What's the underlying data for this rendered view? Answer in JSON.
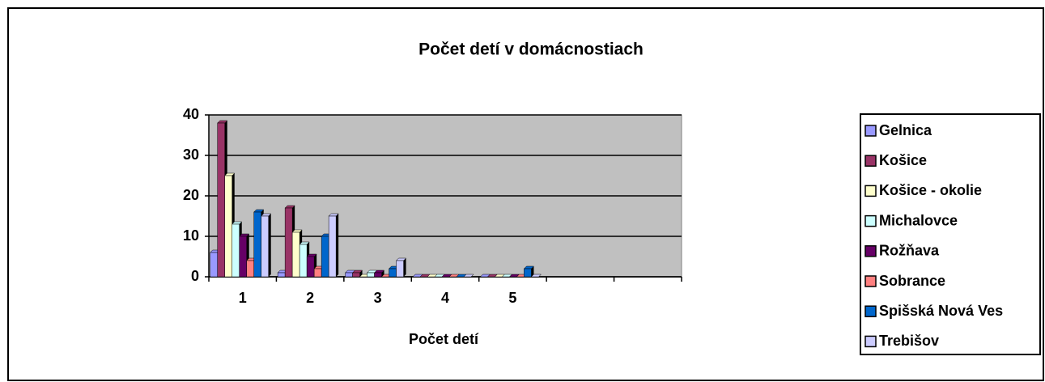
{
  "chart_data": {
    "type": "bar",
    "title": "Počet detí v domácnostiach",
    "x_label": "Počet detí",
    "categories": [
      "1",
      "2",
      "3",
      "4",
      "5",
      null,
      null
    ],
    "series": [
      {
        "name": "Gelnica",
        "color": "#9999ff",
        "values": [
          6,
          1,
          1,
          0,
          0,
          null,
          null
        ]
      },
      {
        "name": "Košice",
        "color": "#993366",
        "values": [
          38,
          17,
          1,
          0,
          0,
          null,
          null
        ]
      },
      {
        "name": "Košice - okolie",
        "color": "#ffffcc",
        "values": [
          25,
          11,
          0,
          0,
          0,
          null,
          null
        ]
      },
      {
        "name": "Michalovce",
        "color": "#ccffff",
        "values": [
          13,
          8,
          1,
          0,
          0,
          null,
          null
        ]
      },
      {
        "name": "Rožňava",
        "color": "#660066",
        "values": [
          10,
          5,
          1,
          0,
          0,
          null,
          null
        ]
      },
      {
        "name": "Sobrance",
        "color": "#ff8080",
        "values": [
          4,
          2,
          0,
          0,
          0,
          null,
          null
        ]
      },
      {
        "name": "Spišská Nová Ves",
        "color": "#0066cc",
        "values": [
          16,
          10,
          2,
          0,
          2,
          null,
          null
        ]
      },
      {
        "name": "Trebišov",
        "color": "#ccccff",
        "values": [
          15,
          15,
          4,
          0,
          0,
          null,
          null
        ]
      }
    ],
    "ylim": [
      0,
      40
    ],
    "yticks": [
      0,
      10,
      20,
      30,
      40
    ],
    "grid": true,
    "legend": "right",
    "plot_color": "#c0c0c0"
  }
}
